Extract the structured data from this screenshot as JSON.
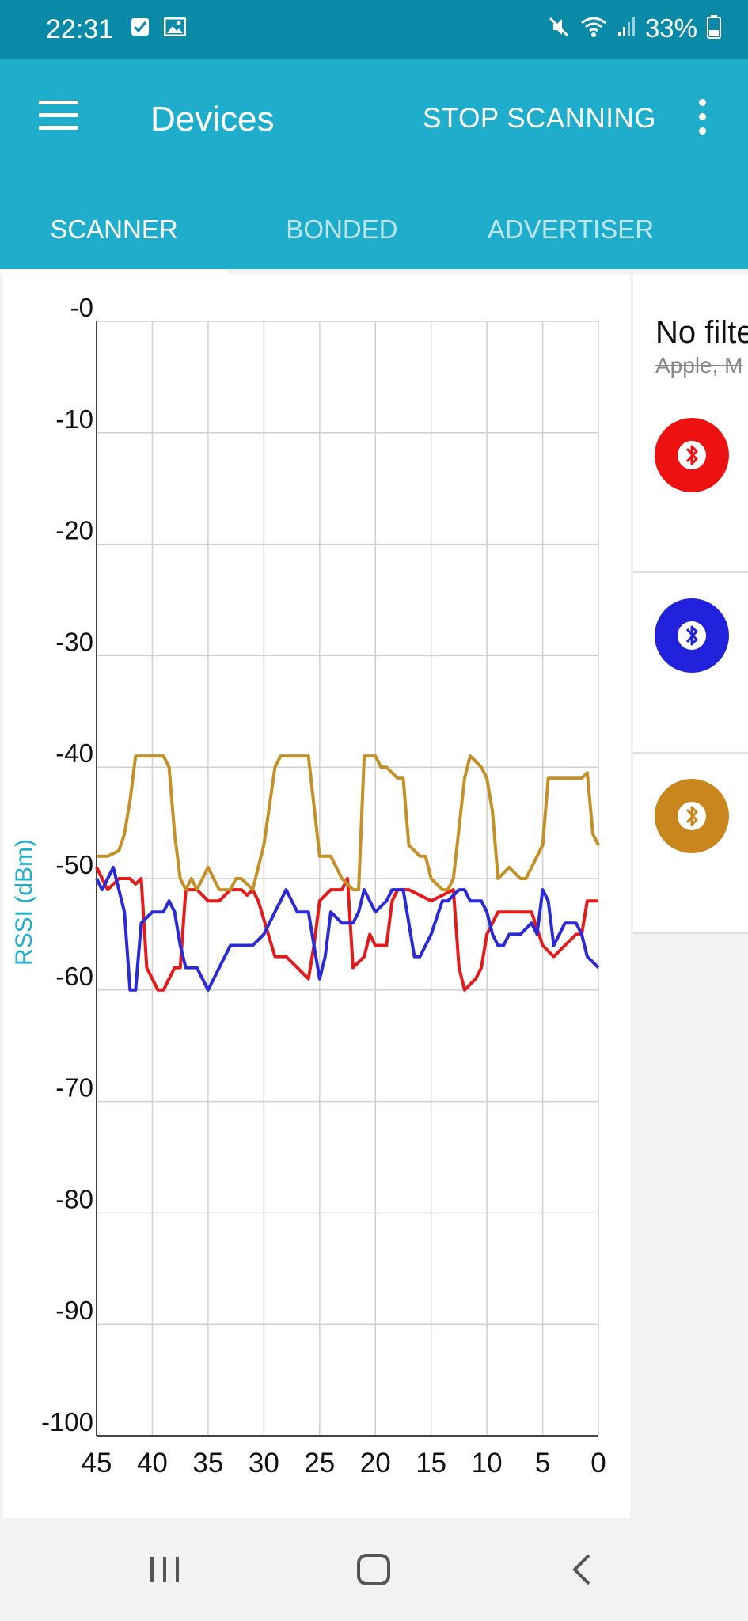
{
  "status": {
    "time": "22:31",
    "battery": "33%",
    "icons_left": [
      "check-box-icon",
      "image-icon"
    ],
    "icons_right": [
      "mute-icon",
      "wifi-icon",
      "signal-icon",
      "battery-icon"
    ]
  },
  "appbar": {
    "title": "Devices",
    "action": "STOP SCANNING",
    "bg_color": "#1eaecc"
  },
  "tabs": [
    {
      "label": "SCANNER",
      "active": true
    },
    {
      "label": "BONDED",
      "active": false
    },
    {
      "label": "ADVERTISER",
      "active": false
    }
  ],
  "filter": {
    "title": "No filte",
    "subtitle": "Apple, M"
  },
  "devices": [
    {
      "color": "#ee1111",
      "icon": "bluetooth-icon"
    },
    {
      "color": "#2222dd",
      "icon": "bluetooth-icon"
    },
    {
      "color": "#c9861f",
      "icon": "bluetooth-icon"
    }
  ],
  "chart_data": {
    "type": "line",
    "ylabel": "RSSI (dBm)",
    "xlabel": "",
    "xlim": [
      45,
      0
    ],
    "ylim": [
      -100,
      0
    ],
    "x_ticks": [
      "45",
      "40",
      "35",
      "30",
      "25",
      "20",
      "15",
      "10",
      "5",
      "0"
    ],
    "y_ticks": [
      "-0",
      "-10",
      "-20",
      "-30",
      "-40",
      "-50",
      "-60",
      "-70",
      "-80",
      "-90",
      "-100"
    ],
    "grid": true,
    "series": [
      {
        "color": "#e31b1b",
        "points": [
          [
            45,
            -49
          ],
          [
            44,
            -51
          ],
          [
            43,
            -50
          ],
          [
            42,
            -50
          ],
          [
            41.5,
            -50.5
          ],
          [
            41,
            -50
          ],
          [
            40.5,
            -58
          ],
          [
            40,
            -59
          ],
          [
            39.5,
            -60
          ],
          [
            39,
            -60
          ],
          [
            38.5,
            -59
          ],
          [
            38,
            -58
          ],
          [
            37.5,
            -58
          ],
          [
            37,
            -51
          ],
          [
            36,
            -51
          ],
          [
            35,
            -52
          ],
          [
            34,
            -52
          ],
          [
            33,
            -51
          ],
          [
            32,
            -51
          ],
          [
            31.5,
            -51.5
          ],
          [
            31,
            -51
          ],
          [
            30.5,
            -52
          ],
          [
            29,
            -57
          ],
          [
            28,
            -57
          ],
          [
            27,
            -58
          ],
          [
            26,
            -59
          ],
          [
            25.5,
            -56
          ],
          [
            25,
            -52
          ],
          [
            24,
            -51
          ],
          [
            23,
            -51
          ],
          [
            22.5,
            -50
          ],
          [
            22,
            -58
          ],
          [
            21,
            -57
          ],
          [
            20.5,
            -55
          ],
          [
            20,
            -56
          ],
          [
            19,
            -56
          ],
          [
            18.5,
            -52
          ],
          [
            18,
            -51
          ],
          [
            17,
            -51
          ],
          [
            16,
            -51.5
          ],
          [
            15,
            -52
          ],
          [
            14,
            -51.5
          ],
          [
            13,
            -51
          ],
          [
            12.5,
            -58
          ],
          [
            12,
            -60
          ],
          [
            11,
            -59
          ],
          [
            10.5,
            -58
          ],
          [
            10,
            -55
          ],
          [
            9,
            -53
          ],
          [
            8,
            -53
          ],
          [
            7,
            -53
          ],
          [
            6,
            -53
          ],
          [
            5,
            -56
          ],
          [
            4,
            -57
          ],
          [
            3,
            -56
          ],
          [
            2,
            -55
          ],
          [
            1.5,
            -55
          ],
          [
            1,
            -52
          ],
          [
            0,
            -52
          ]
        ]
      },
      {
        "color": "#2a2ad6",
        "points": [
          [
            45,
            -50
          ],
          [
            44.5,
            -51
          ],
          [
            44,
            -50
          ],
          [
            43.5,
            -49
          ],
          [
            43,
            -51
          ],
          [
            42.5,
            -53
          ],
          [
            42,
            -60
          ],
          [
            41.5,
            -60
          ],
          [
            41,
            -54
          ],
          [
            40,
            -53
          ],
          [
            39,
            -53
          ],
          [
            38.5,
            -52
          ],
          [
            38,
            -53
          ],
          [
            37.5,
            -56
          ],
          [
            37,
            -58
          ],
          [
            36,
            -58
          ],
          [
            35.5,
            -59
          ],
          [
            35,
            -60
          ],
          [
            34,
            -58
          ],
          [
            33,
            -56
          ],
          [
            32,
            -56
          ],
          [
            31,
            -56
          ],
          [
            30,
            -55
          ],
          [
            29,
            -53
          ],
          [
            28,
            -51
          ],
          [
            27,
            -53
          ],
          [
            26,
            -53
          ],
          [
            25.5,
            -56
          ],
          [
            25,
            -59
          ],
          [
            24.5,
            -57
          ],
          [
            24,
            -53
          ],
          [
            23,
            -54
          ],
          [
            22,
            -54
          ],
          [
            21.5,
            -53
          ],
          [
            21,
            -51
          ],
          [
            20,
            -53
          ],
          [
            19,
            -52
          ],
          [
            18.5,
            -51
          ],
          [
            17.5,
            -51
          ],
          [
            17,
            -54
          ],
          [
            16.5,
            -57
          ],
          [
            16,
            -57
          ],
          [
            15,
            -55
          ],
          [
            14,
            -52
          ],
          [
            13.5,
            -52
          ],
          [
            12.5,
            -51
          ],
          [
            12,
            -51
          ],
          [
            11.5,
            -52
          ],
          [
            11,
            -52
          ],
          [
            10.5,
            -52
          ],
          [
            10,
            -53
          ],
          [
            9.5,
            -55
          ],
          [
            9,
            -56
          ],
          [
            8.5,
            -56
          ],
          [
            8,
            -55
          ],
          [
            7,
            -55
          ],
          [
            6,
            -54
          ],
          [
            5.5,
            -55
          ],
          [
            5,
            -51
          ],
          [
            4.5,
            -52
          ],
          [
            4,
            -56
          ],
          [
            3,
            -54
          ],
          [
            2,
            -54
          ],
          [
            1.5,
            -55
          ],
          [
            1,
            -57
          ],
          [
            0,
            -58
          ]
        ]
      },
      {
        "color": "#c49028",
        "points": [
          [
            45,
            -48
          ],
          [
            44,
            -48
          ],
          [
            43,
            -47.5
          ],
          [
            42.5,
            -46
          ],
          [
            42,
            -43
          ],
          [
            41.5,
            -39
          ],
          [
            40,
            -39
          ],
          [
            39,
            -39
          ],
          [
            38.5,
            -40
          ],
          [
            38,
            -46
          ],
          [
            37.5,
            -50
          ],
          [
            37,
            -51
          ],
          [
            36.5,
            -50
          ],
          [
            36,
            -51
          ],
          [
            35.5,
            -50
          ],
          [
            35,
            -49
          ],
          [
            34.5,
            -50
          ],
          [
            34,
            -51
          ],
          [
            33,
            -51
          ],
          [
            32.5,
            -50
          ],
          [
            32,
            -50
          ],
          [
            31,
            -51
          ],
          [
            30,
            -47
          ],
          [
            29,
            -40
          ],
          [
            28.5,
            -39
          ],
          [
            26,
            -39
          ],
          [
            25,
            -48
          ],
          [
            24,
            -48
          ],
          [
            23,
            -50
          ],
          [
            22,
            -51
          ],
          [
            21.5,
            -51
          ],
          [
            21,
            -39
          ],
          [
            20,
            -39
          ],
          [
            19.5,
            -40
          ],
          [
            19,
            -40
          ],
          [
            18,
            -41
          ],
          [
            17.5,
            -41
          ],
          [
            17,
            -47
          ],
          [
            16,
            -48
          ],
          [
            15.5,
            -48
          ],
          [
            15,
            -50
          ],
          [
            14,
            -51
          ],
          [
            13.5,
            -51
          ],
          [
            13,
            -50
          ],
          [
            12,
            -41
          ],
          [
            11.5,
            -39
          ],
          [
            10.5,
            -40
          ],
          [
            10,
            -41
          ],
          [
            9.5,
            -44
          ],
          [
            9,
            -50
          ],
          [
            8,
            -49
          ],
          [
            7,
            -50
          ],
          [
            6.5,
            -50
          ],
          [
            6,
            -49
          ],
          [
            5,
            -47
          ],
          [
            4.5,
            -41
          ],
          [
            4,
            -41
          ],
          [
            3,
            -41
          ],
          [
            2,
            -41
          ],
          [
            1.5,
            -41
          ],
          [
            1,
            -40.5
          ],
          [
            0.5,
            -46
          ],
          [
            0,
            -47
          ]
        ]
      }
    ]
  }
}
